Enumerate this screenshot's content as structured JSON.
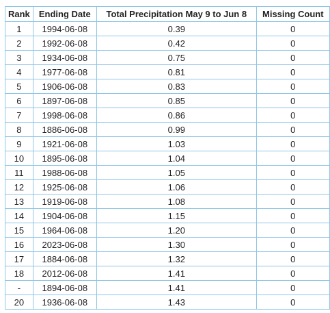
{
  "table": {
    "columns": [
      "Rank",
      "Ending Date",
      "Total Precipitation May 9 to Jun 8",
      "Missing Count"
    ],
    "rows": [
      [
        "1",
        "1994-06-08",
        "0.39",
        "0"
      ],
      [
        "2",
        "1992-06-08",
        "0.42",
        "0"
      ],
      [
        "3",
        "1934-06-08",
        "0.75",
        "0"
      ],
      [
        "4",
        "1977-06-08",
        "0.81",
        "0"
      ],
      [
        "5",
        "1906-06-08",
        "0.83",
        "0"
      ],
      [
        "6",
        "1897-06-08",
        "0.85",
        "0"
      ],
      [
        "7",
        "1998-06-08",
        "0.86",
        "0"
      ],
      [
        "8",
        "1886-06-08",
        "0.99",
        "0"
      ],
      [
        "9",
        "1921-06-08",
        "1.03",
        "0"
      ],
      [
        "10",
        "1895-06-08",
        "1.04",
        "0"
      ],
      [
        "11",
        "1988-06-08",
        "1.05",
        "0"
      ],
      [
        "12",
        "1925-06-08",
        "1.06",
        "0"
      ],
      [
        "13",
        "1919-06-08",
        "1.08",
        "0"
      ],
      [
        "14",
        "1904-06-08",
        "1.15",
        "0"
      ],
      [
        "15",
        "1964-06-08",
        "1.20",
        "0"
      ],
      [
        "16",
        "2023-06-08",
        "1.30",
        "0"
      ],
      [
        "17",
        "1884-06-08",
        "1.32",
        "0"
      ],
      [
        "18",
        "2012-06-08",
        "1.41",
        "0"
      ],
      [
        "-",
        "1894-06-08",
        "1.41",
        "0"
      ],
      [
        "20",
        "1936-06-08",
        "1.43",
        "0"
      ]
    ]
  }
}
